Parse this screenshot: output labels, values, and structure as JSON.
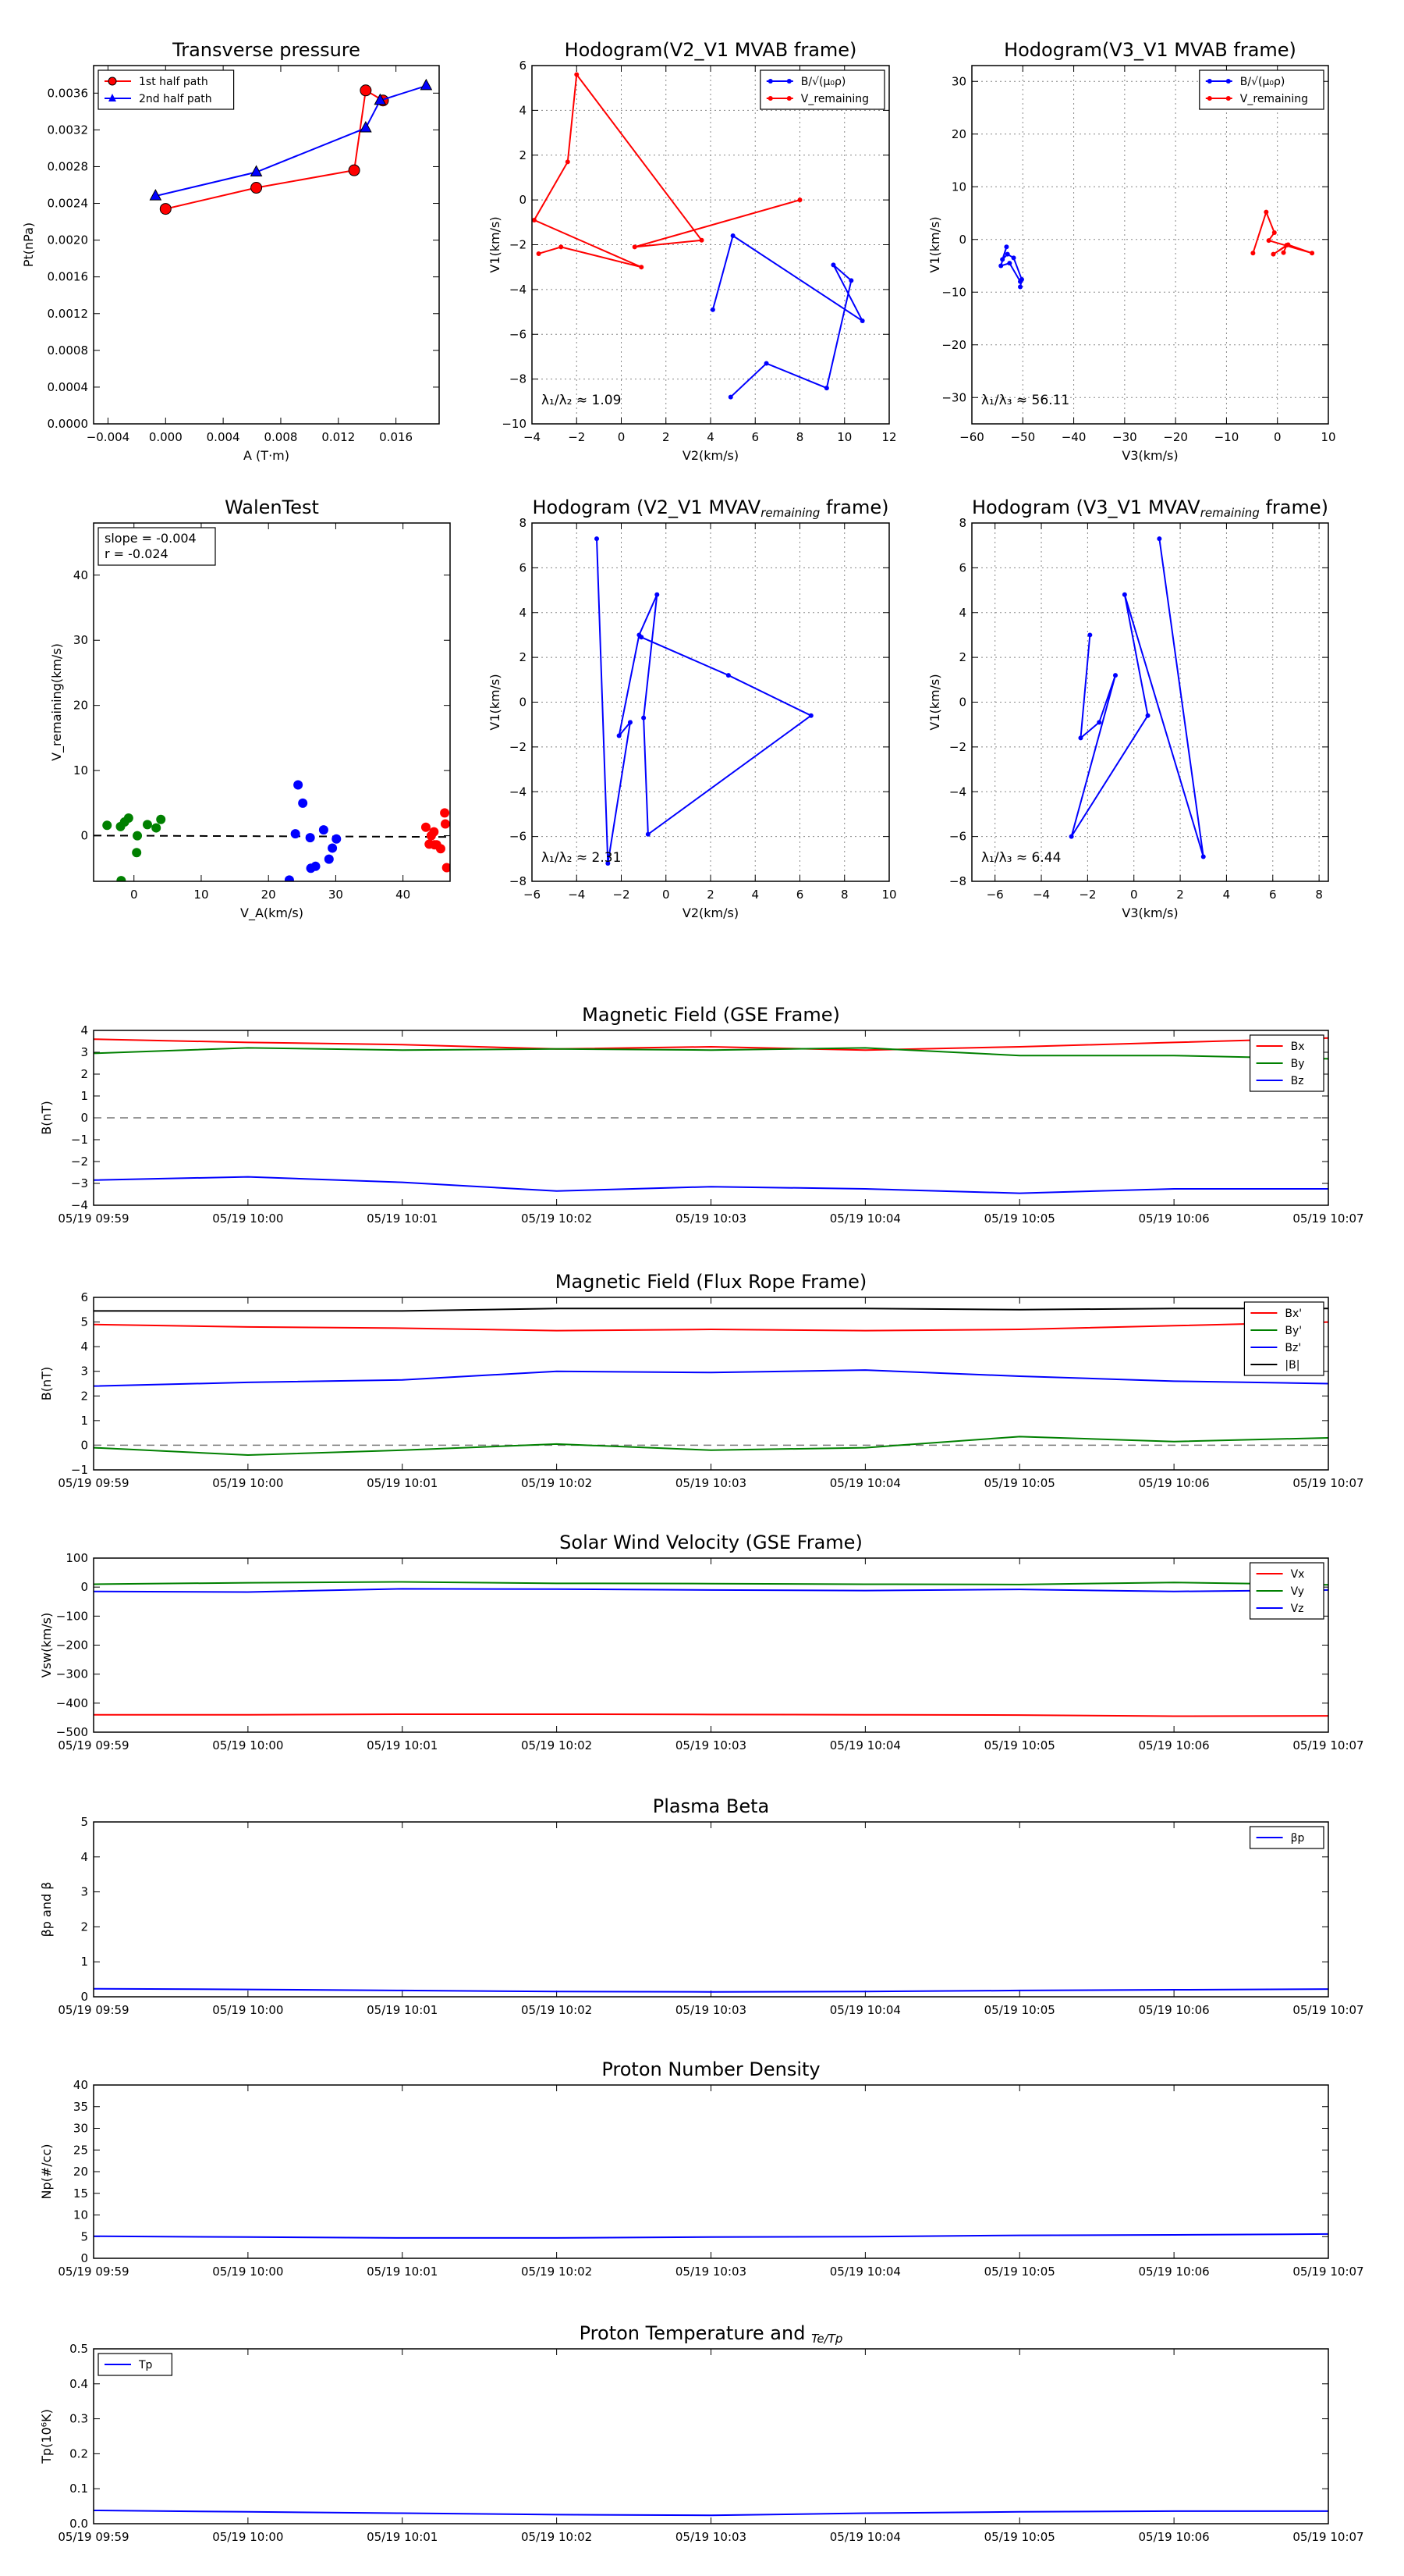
{
  "colors": {
    "red": "#ff0000",
    "blue": "#0000ff",
    "green": "#008000",
    "black": "#000000",
    "grid": "#888888"
  },
  "chart_data": [
    {
      "id": "tp",
      "type": "scatter",
      "title": "Transverse pressure",
      "xlabel": "A (T·m)",
      "ylabel": "Pt(nPa)",
      "xlim": [
        -0.005,
        0.019
      ],
      "ylim": [
        0,
        0.0039
      ],
      "xticks": [
        -0.004,
        0,
        0.004,
        0.008,
        0.012,
        0.016
      ],
      "xtick_labels": [
        "−0.004",
        "0.000",
        "0.004",
        "0.008",
        "0.012",
        "0.016"
      ],
      "yticks": [
        0,
        0.0004,
        0.0008,
        0.0012,
        0.0016,
        0.002,
        0.0024,
        0.0028,
        0.0032,
        0.0036
      ],
      "ytick_labels": [
        "0.0000",
        "0.0004",
        "0.0008",
        "0.0012",
        "0.0016",
        "0.0020",
        "0.0024",
        "0.0028",
        "0.0032",
        "0.0036"
      ],
      "grid": false,
      "legend": "top-left",
      "series": [
        {
          "name": "1st half path",
          "color": "#ff0000",
          "marker": "circle",
          "x": [
            0.0,
            0.0063,
            0.0131,
            0.0139,
            0.0151
          ],
          "y": [
            0.00234,
            0.00257,
            0.00276,
            0.00363,
            0.00352
          ]
        },
        {
          "name": "2nd half path",
          "color": "#0000ff",
          "marker": "triangle",
          "x": [
            -0.0007,
            0.0063,
            0.0139,
            0.0149,
            0.0181
          ],
          "y": [
            0.00248,
            0.00274,
            0.00322,
            0.00352,
            0.00368
          ]
        }
      ]
    },
    {
      "id": "h1",
      "type": "line",
      "title": "Hodogram(V2_V1 MVAB frame)",
      "xlabel": "V2(km/s)",
      "ylabel": "V1(km/s)",
      "xlim": [
        -4,
        12
      ],
      "ylim": [
        -10,
        6
      ],
      "xticks": [
        -4,
        -2,
        0,
        2,
        4,
        6,
        8,
        10,
        12
      ],
      "yticks": [
        -10,
        -8,
        -6,
        -4,
        -2,
        0,
        2,
        4,
        6
      ],
      "grid": true,
      "legend": "top-right",
      "annotation": "λ₁/λ₂ ≈ 1.09",
      "series": [
        {
          "name": "B/√(μ₀ρ)",
          "color": "#0000ff",
          "x": [
            4.9,
            6.5,
            9.2,
            10.3,
            9.5,
            10.8,
            5.0,
            4.1
          ],
          "y": [
            -8.8,
            -7.3,
            -8.4,
            -3.6,
            -2.9,
            -5.4,
            -1.6,
            -4.9
          ]
        },
        {
          "name": "V_remaining",
          "color": "#ff0000",
          "x": [
            -3.7,
            -2.7,
            0.9,
            -3.9,
            -2.4,
            -2.0,
            3.6,
            0.6,
            8.0
          ],
          "y": [
            -2.4,
            -2.1,
            -3.0,
            -0.9,
            1.7,
            5.6,
            -1.8,
            -2.1,
            0.0
          ]
        }
      ]
    },
    {
      "id": "h2",
      "type": "line",
      "title": "Hodogram(V3_V1 MVAB frame)",
      "xlabel": "V3(km/s)",
      "ylabel": "V1(km/s)",
      "xlim": [
        -60,
        10
      ],
      "ylim": [
        -35,
        33
      ],
      "xticks": [
        -60,
        -50,
        -40,
        -30,
        -20,
        -10,
        0,
        10
      ],
      "yticks": [
        -30,
        -20,
        -10,
        0,
        10,
        20,
        30
      ],
      "grid": true,
      "legend": "top-right",
      "annotation": "λ₁/λ₃ ≈ 56.11",
      "series": [
        {
          "name": "B/√(μ₀ρ)",
          "color": "#0000ff",
          "x": [
            -50.5,
            -50.2,
            -51.8,
            -53.0,
            -54.0,
            -53.2,
            -54.3,
            -52.6,
            -50.5
          ],
          "y": [
            -9.0,
            -7.6,
            -3.5,
            -2.8,
            -3.8,
            -1.4,
            -5.0,
            -4.5,
            -8.0
          ]
        },
        {
          "name": "V_remaining",
          "color": "#ff0000",
          "x": [
            -4.8,
            -2.2,
            -0.6,
            -1.7,
            6.8,
            2.1,
            -0.8,
            1.8,
            1.2
          ],
          "y": [
            -2.6,
            5.2,
            1.3,
            -0.2,
            -2.6,
            -1.0,
            -2.8,
            -1.1,
            -2.5
          ]
        }
      ]
    },
    {
      "id": "walen",
      "type": "scatter",
      "title": "WalenTest",
      "xlabel": "V_A(km/s)",
      "ylabel": "V_remaining(km/s)",
      "xlim": [
        -6,
        47
      ],
      "ylim": [
        -7,
        48
      ],
      "xticks": [
        0,
        10,
        20,
        30,
        40
      ],
      "yticks": [
        0,
        10,
        20,
        30,
        40
      ],
      "grid": false,
      "legend": "top-left",
      "legend_lines": [
        "slope = -0.004",
        "r = -0.024"
      ],
      "dashed_line": {
        "slope": -0.004,
        "intercept": 0
      },
      "series": [
        {
          "name": "",
          "color": "#008000",
          "x": [
            -4.0,
            -2.0,
            -1.4,
            -0.8,
            0.4,
            2.0,
            3.3,
            4.0,
            -1.9,
            0.5
          ],
          "y": [
            1.6,
            1.4,
            2.1,
            2.7,
            -2.6,
            1.7,
            1.2,
            2.5,
            -6.9,
            0.0
          ]
        },
        {
          "name": "",
          "color": "#0000ff",
          "x": [
            24.0,
            24.4,
            25.1,
            26.2,
            27.0,
            28.2,
            29.5,
            30.1,
            29.0,
            26.3,
            23.1
          ],
          "y": [
            0.3,
            7.8,
            5.0,
            -0.3,
            -4.7,
            0.9,
            -1.9,
            -0.5,
            -3.6,
            -5.0,
            -6.8
          ]
        },
        {
          "name": "",
          "color": "#ff0000",
          "x": [
            43.4,
            44.2,
            44.7,
            45.6,
            46.2,
            46.3,
            46.5,
            44.6,
            45.0,
            43.9
          ],
          "y": [
            1.3,
            0.0,
            -1.4,
            -2.0,
            3.5,
            1.8,
            -4.9,
            0.6,
            -1.4,
            -1.3
          ]
        }
      ]
    },
    {
      "id": "h3",
      "type": "line",
      "title": "Hodogram (V2_V1 MVAV_remaining frame)",
      "xlabel": "V2(km/s)",
      "ylabel": "V1(km/s)",
      "xlim": [
        -6,
        10
      ],
      "ylim": [
        -8,
        8
      ],
      "xticks": [
        -6,
        -4,
        -2,
        0,
        2,
        4,
        6,
        8,
        10
      ],
      "yticks": [
        -8,
        -6,
        -4,
        -2,
        0,
        2,
        4,
        6,
        8
      ],
      "grid": true,
      "annotation": "λ₁/λ₂ ≈ 2.31",
      "series": [
        {
          "name": "",
          "color": "#0000ff",
          "x": [
            -3.1,
            -2.6,
            -1.6,
            -2.1,
            -1.2,
            -0.4,
            -1.0,
            -0.8,
            6.5,
            2.8,
            -1.1
          ],
          "y": [
            7.3,
            -7.2,
            -0.9,
            -1.5,
            3.0,
            4.8,
            -0.7,
            -5.9,
            -0.6,
            1.2,
            2.9
          ]
        }
      ]
    },
    {
      "id": "h4",
      "type": "line",
      "title": "Hodogram (V3_V1 MVAV_remaining frame)",
      "xlabel": "V3(km/s)",
      "ylabel": "V1(km/s)",
      "xlim": [
        -7,
        8.4
      ],
      "ylim": [
        -8,
        8
      ],
      "xticks": [
        -6,
        -4,
        -2,
        0,
        2,
        4,
        6,
        8
      ],
      "yticks": [
        -8,
        -6,
        -4,
        -2,
        0,
        2,
        4,
        6,
        8
      ],
      "grid": true,
      "annotation": "λ₁/λ₃ ≈ 6.44",
      "series": [
        {
          "name": "",
          "color": "#0000ff",
          "x": [
            1.1,
            3.0,
            -0.4,
            0.6,
            -2.7,
            -0.8,
            -1.5,
            -2.3,
            -1.9
          ],
          "y": [
            7.3,
            -6.9,
            4.8,
            -0.6,
            -6.0,
            1.2,
            -0.9,
            -1.6,
            3.0
          ]
        }
      ]
    },
    {
      "id": "bgse",
      "type": "line",
      "title": "Magnetic Field (GSE Frame)",
      "ylabel": "B(nT)",
      "ylim": [
        -4,
        4
      ],
      "yticks": [
        -4,
        -3,
        -2,
        -1,
        0,
        1,
        2,
        3,
        4
      ],
      "legend": "top-right",
      "zero_dashed": true,
      "x": [
        "05/19 09:59",
        "05/19 10:00",
        "05/19 10:01",
        "05/19 10:02",
        "05/19 10:03",
        "05/19 10:04",
        "05/19 10:05",
        "05/19 10:06",
        "05/19 10:07"
      ],
      "series": [
        {
          "name": "Bx",
          "color": "#ff0000",
          "values": [
            3.6,
            3.45,
            3.35,
            3.15,
            3.25,
            3.1,
            3.25,
            3.45,
            3.65
          ]
        },
        {
          "name": "By",
          "color": "#008000",
          "values": [
            2.95,
            3.2,
            3.1,
            3.15,
            3.1,
            3.2,
            2.85,
            2.85,
            2.7
          ]
        },
        {
          "name": "Bz",
          "color": "#0000ff",
          "values": [
            -2.85,
            -2.7,
            -2.95,
            -3.35,
            -3.15,
            -3.25,
            -3.45,
            -3.25,
            -3.25
          ]
        }
      ]
    },
    {
      "id": "bfr",
      "type": "line",
      "title": "Magnetic Field (Flux Rope Frame)",
      "ylabel": "B(nT)",
      "ylim": [
        -1,
        6
      ],
      "yticks": [
        -1,
        0,
        1,
        2,
        3,
        4,
        5,
        6
      ],
      "legend": "top-right",
      "zero_dashed": true,
      "x": [
        "05/19 09:59",
        "05/19 10:00",
        "05/19 10:01",
        "05/19 10:02",
        "05/19 10:03",
        "05/19 10:04",
        "05/19 10:05",
        "05/19 10:06",
        "05/19 10:07"
      ],
      "series": [
        {
          "name": "Bx'",
          "color": "#ff0000",
          "values": [
            4.9,
            4.8,
            4.75,
            4.65,
            4.7,
            4.65,
            4.7,
            4.85,
            5.0
          ]
        },
        {
          "name": "By'",
          "color": "#008000",
          "values": [
            -0.1,
            -0.4,
            -0.2,
            0.05,
            -0.2,
            -0.1,
            0.35,
            0.15,
            0.3
          ]
        },
        {
          "name": "Bz'",
          "color": "#0000ff",
          "values": [
            2.4,
            2.55,
            2.65,
            3.0,
            2.95,
            3.05,
            2.8,
            2.6,
            2.5
          ]
        },
        {
          "name": "|B|",
          "color": "#000000",
          "values": [
            5.45,
            5.45,
            5.45,
            5.55,
            5.55,
            5.55,
            5.5,
            5.55,
            5.55
          ]
        }
      ]
    },
    {
      "id": "vsw",
      "type": "line",
      "title": "Solar Wind Velocity (GSE Frame)",
      "ylabel": "Vsw(km/s)",
      "ylim": [
        -500,
        100
      ],
      "yticks": [
        -500,
        -400,
        -300,
        -200,
        -100,
        0,
        100
      ],
      "legend": "top-right",
      "x": [
        "05/19 09:59",
        "05/19 10:00",
        "05/19 10:01",
        "05/19 10:02",
        "05/19 10:03",
        "05/19 10:04",
        "05/19 10:05",
        "05/19 10:06",
        "05/19 10:07"
      ],
      "series": [
        {
          "name": "Vx",
          "color": "#ff0000",
          "values": [
            -440,
            -440,
            -438,
            -438,
            -439,
            -440,
            -441,
            -445,
            -444
          ]
        },
        {
          "name": "Vy",
          "color": "#008000",
          "values": [
            10,
            15,
            18,
            13,
            12,
            10,
            9,
            16,
            8
          ]
        },
        {
          "name": "Vz",
          "color": "#0000ff",
          "values": [
            -15,
            -17,
            -6,
            -7,
            -10,
            -12,
            -8,
            -15,
            -10
          ]
        }
      ]
    },
    {
      "id": "beta",
      "type": "line",
      "title": "Plasma Beta",
      "ylabel": "βp and β",
      "ylim": [
        0,
        5
      ],
      "yticks": [
        0,
        1,
        2,
        3,
        4,
        5
      ],
      "legend": "top-right",
      "x": [
        "05/19 09:59",
        "05/19 10:00",
        "05/19 10:01",
        "05/19 10:02",
        "05/19 10:03",
        "05/19 10:04",
        "05/19 10:05",
        "05/19 10:06",
        "05/19 10:07"
      ],
      "series": [
        {
          "name": "βp",
          "color": "#0000ff",
          "values": [
            0.23,
            0.21,
            0.18,
            0.15,
            0.14,
            0.15,
            0.18,
            0.2,
            0.22
          ]
        }
      ]
    },
    {
      "id": "np",
      "type": "line",
      "title": "Proton Number Density",
      "ylabel": "Np(#/cc)",
      "ylim": [
        0,
        40
      ],
      "yticks": [
        0,
        5,
        10,
        15,
        20,
        25,
        30,
        35,
        40
      ],
      "x": [
        "05/19 09:59",
        "05/19 10:00",
        "05/19 10:01",
        "05/19 10:02",
        "05/19 10:03",
        "05/19 10:04",
        "05/19 10:05",
        "05/19 10:06",
        "05/19 10:07"
      ],
      "series": [
        {
          "name": "",
          "color": "#0000ff",
          "values": [
            5.1,
            4.9,
            4.7,
            4.7,
            4.9,
            5.0,
            5.3,
            5.4,
            5.6
          ]
        }
      ]
    },
    {
      "id": "tpt",
      "type": "line",
      "title": "Proton Temperature and Te/Tp",
      "ylabel": "Tp(10⁶K)",
      "ylim": [
        0,
        0.5
      ],
      "yticks": [
        0,
        0.1,
        0.2,
        0.3,
        0.4,
        0.5
      ],
      "ytick_labels": [
        "0.0",
        "0.1",
        "0.2",
        "0.3",
        "0.4",
        "0.5"
      ],
      "legend": "top-left",
      "x": [
        "05/19 09:59",
        "05/19 10:00",
        "05/19 10:01",
        "05/19 10:02",
        "05/19 10:03",
        "05/19 10:04",
        "05/19 10:05",
        "05/19 10:06",
        "05/19 10:07"
      ],
      "series": [
        {
          "name": "Tp",
          "color": "#0000ff",
          "values": [
            0.038,
            0.034,
            0.03,
            0.026,
            0.024,
            0.03,
            0.034,
            0.036,
            0.036
          ]
        }
      ]
    }
  ]
}
